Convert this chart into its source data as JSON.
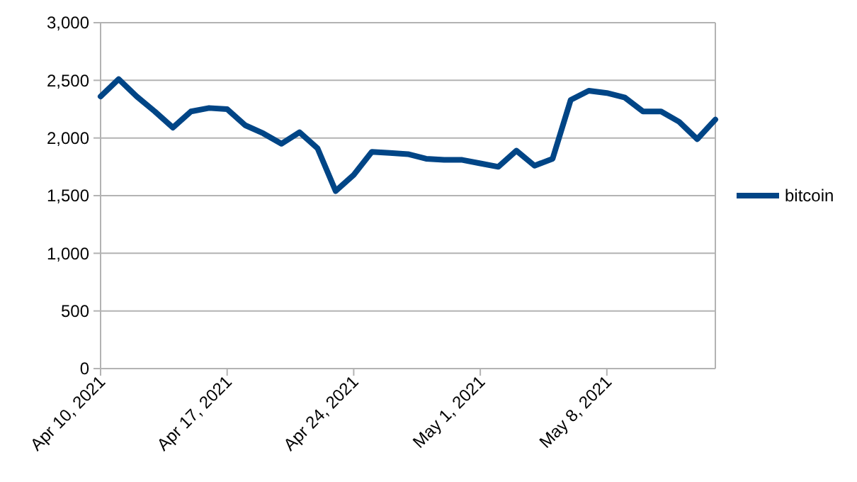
{
  "chart_data": {
    "type": "line",
    "x": [
      "2021-04-10",
      "2021-04-11",
      "2021-04-12",
      "2021-04-13",
      "2021-04-14",
      "2021-04-15",
      "2021-04-16",
      "2021-04-17",
      "2021-04-18",
      "2021-04-19",
      "2021-04-20",
      "2021-04-21",
      "2021-04-22",
      "2021-04-23",
      "2021-04-24",
      "2021-04-25",
      "2021-04-26",
      "2021-04-27",
      "2021-04-28",
      "2021-04-29",
      "2021-04-30",
      "2021-05-01",
      "2021-05-02",
      "2021-05-03",
      "2021-05-04",
      "2021-05-05",
      "2021-05-06",
      "2021-05-07",
      "2021-05-08",
      "2021-05-09",
      "2021-05-10",
      "2021-05-11",
      "2021-05-12",
      "2021-05-13",
      "2021-05-14"
    ],
    "series": [
      {
        "name": "bitcoin",
        "color": "#004586",
        "values": [
          2360,
          2510,
          2360,
          2230,
          2090,
          2230,
          2260,
          2250,
          2110,
          2040,
          1950,
          2050,
          1910,
          1540,
          1680,
          1880,
          1870,
          1860,
          1820,
          1810,
          1810,
          1780,
          1750,
          1890,
          1760,
          1820,
          2330,
          2410,
          2390,
          2350,
          2230,
          2230,
          2140,
          1990,
          2160
        ]
      }
    ],
    "xlim": [
      "2021-04-10",
      "2021-05-14"
    ],
    "xticks": [
      {
        "value": "2021-04-10",
        "label": "Apr 10, 2021"
      },
      {
        "value": "2021-04-17",
        "label": "Apr 17, 2021"
      },
      {
        "value": "2021-04-24",
        "label": "Apr 24, 2021"
      },
      {
        "value": "2021-05-01",
        "label": "May 1, 2021"
      },
      {
        "value": "2021-05-08",
        "label": "May 8, 2021"
      }
    ],
    "ylim": [
      0,
      3000
    ],
    "yticks": [
      {
        "value": 0,
        "label": "0"
      },
      {
        "value": 500,
        "label": "500"
      },
      {
        "value": 1000,
        "label": "1,000"
      },
      {
        "value": 1500,
        "label": "1,500"
      },
      {
        "value": 2000,
        "label": "2,000"
      },
      {
        "value": 2500,
        "label": "2,500"
      },
      {
        "value": 3000,
        "label": "3,000"
      }
    ],
    "grid": "y",
    "legend": "right",
    "line_style": "solid"
  }
}
